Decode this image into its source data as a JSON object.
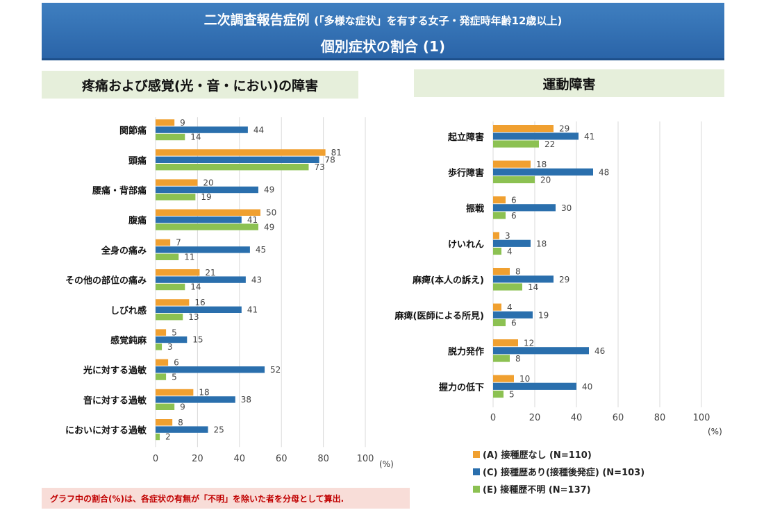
{
  "header": {
    "title_main": "二次調査報告症例",
    "title_sub": "(「多様な症状」を有する女子・発症時年齢12歳以上)",
    "subtitle": "個別症状の割合",
    "subtitle_num": "(1)"
  },
  "colors": {
    "A": "#f0a030",
    "C": "#2a6fad",
    "E": "#8cc152",
    "grid": "#d9d9d9"
  },
  "chart_data": [
    {
      "type": "bar",
      "orientation": "horizontal",
      "title": "疼痛および感覚(光・音・におい)の障害",
      "categories": [
        "関節痛",
        "頭痛",
        "腰痛・背部痛",
        "腹痛",
        "全身の痛み",
        "その他の部位の痛み",
        "しびれ感",
        "感覚鈍麻",
        "光に対する過敏",
        "音に対する過敏",
        "においに対する過敏"
      ],
      "series": [
        {
          "name": "(A) 接種歴なし (N=110)",
          "color_key": "A",
          "values": [
            9,
            81,
            20,
            50,
            7,
            21,
            16,
            5,
            6,
            18,
            8
          ]
        },
        {
          "name": "(C) 接種歴あり(接種後発症) (N=103)",
          "color_key": "C",
          "values": [
            44,
            78,
            49,
            41,
            45,
            43,
            41,
            15,
            52,
            38,
            25
          ]
        },
        {
          "name": "(E) 接種歴不明 (N=137)",
          "color_key": "E",
          "values": [
            14,
            73,
            19,
            49,
            11,
            14,
            13,
            3,
            5,
            9,
            2
          ]
        }
      ],
      "xlim": [
        0,
        100
      ],
      "xticks": [
        "0",
        "20",
        "40",
        "60",
        "80",
        "100"
      ],
      "unit": "(%)",
      "grid": true
    },
    {
      "type": "bar",
      "orientation": "horizontal",
      "title": "運動障害",
      "categories": [
        "起立障害",
        "歩行障害",
        "振戦",
        "けいれん",
        "麻痺(本人の訴え)",
        "麻痺(医師による所見)",
        "脱力発作",
        "握力の低下"
      ],
      "series": [
        {
          "name": "(A) 接種歴なし (N=110)",
          "color_key": "A",
          "values": [
            29,
            18,
            6,
            3,
            8,
            4,
            12,
            10
          ]
        },
        {
          "name": "(C) 接種歴あり(接種後発症) (N=103)",
          "color_key": "C",
          "values": [
            41,
            48,
            30,
            18,
            29,
            19,
            46,
            40
          ]
        },
        {
          "name": "(E) 接種歴不明 (N=137)",
          "color_key": "E",
          "values": [
            22,
            20,
            6,
            4,
            14,
            6,
            8,
            5
          ]
        }
      ],
      "xlim": [
        0,
        100
      ],
      "xticks": [
        "0",
        "20",
        "40",
        "60",
        "80",
        "100"
      ],
      "unit": "(%)",
      "grid": true
    }
  ],
  "legend": [
    {
      "label": "(A) 接種歴なし (N=110)",
      "color_key": "A"
    },
    {
      "label": "(C) 接種歴あり(接種後発症) (N=103)",
      "color_key": "C"
    },
    {
      "label": "(E) 接種歴不明 (N=137)",
      "color_key": "E"
    }
  ],
  "footnote": "グラフ中の割合(%)は、各症状の有無が「不明」を除いた者を分母として算出."
}
